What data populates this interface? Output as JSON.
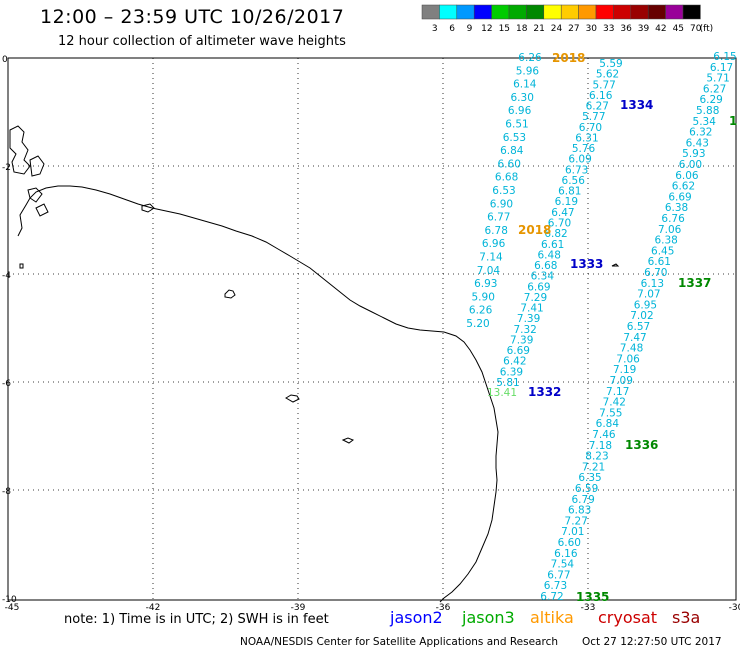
{
  "header": {
    "title": "12:00 – 23:59 UTC 10/26/2017",
    "subtitle": "12 hour collection of altimeter wave heights"
  },
  "legend": {
    "unit": "(ft)",
    "bins": [
      {
        "label": "3",
        "color": "#808080"
      },
      {
        "label": "6",
        "color": "#00ffff"
      },
      {
        "label": "9",
        "color": "#0099ff"
      },
      {
        "label": "12",
        "color": "#0000ff"
      },
      {
        "label": "15",
        "color": "#00cc00"
      },
      {
        "label": "18",
        "color": "#00aa00"
      },
      {
        "label": "21",
        "color": "#008800"
      },
      {
        "label": "24",
        "color": "#ffff00"
      },
      {
        "label": "27",
        "color": "#ffcc00"
      },
      {
        "label": "30",
        "color": "#ff9900"
      },
      {
        "label": "33",
        "color": "#ff0000"
      },
      {
        "label": "36",
        "color": "#cc0000"
      },
      {
        "label": "39",
        "color": "#990000"
      },
      {
        "label": "42",
        "color": "#660000"
      },
      {
        "label": "45",
        "color": "#990099"
      },
      {
        "label": "70",
        "color": "#000000"
      }
    ]
  },
  "axes": {
    "lon_ticks": [
      "-45",
      "-42",
      "-39",
      "-36",
      "-33",
      "-30"
    ],
    "lat_ticks": [
      "0",
      "-2",
      "-4",
      "-6",
      "-8",
      "-10"
    ]
  },
  "tracks": {
    "pass_labels": [
      {
        "text": "2018",
        "color": "#e69500"
      },
      {
        "text": "1334",
        "color": "#0000c8"
      },
      {
        "text": "1",
        "color": "#008800"
      },
      {
        "text": "2018",
        "color": "#e69500"
      },
      {
        "text": "1333",
        "color": "#0000c8"
      },
      {
        "text": "1337",
        "color": "#008800"
      },
      {
        "text": "1332",
        "color": "#0000c8"
      },
      {
        "text": "1336",
        "color": "#008800"
      },
      {
        "text": "1335",
        "color": "#008800"
      }
    ],
    "track_a": {
      "color": "#00b4d8",
      "values": [
        "6.26",
        "5.96",
        "6.14",
        "6.30",
        "6.96",
        "6.51",
        "6.53",
        "6.84",
        "6.60",
        "6.68",
        "6.53",
        "6.90",
        "6.77",
        "6.78",
        "6.96",
        "7.14",
        "7.04",
        "6.93",
        "5.90",
        "6.26",
        "5.20"
      ]
    },
    "track_b": {
      "color": "#00b4d8",
      "values": [
        "5.59",
        "5.62",
        "5.77",
        "6.16",
        "6.27",
        "5.77",
        "6.70",
        "6.31",
        "5.76",
        "6.09",
        "6.73",
        "6.56",
        "6.81",
        "6.19",
        "6.47",
        "6.70",
        "6.82",
        "6.61",
        "6.48",
        "6.68",
        "6.34",
        "6.69",
        "7.29",
        "7.41",
        "7.39",
        "7.32",
        "7.39",
        "6.69",
        "6.42",
        "6.39",
        "5.81"
      ]
    },
    "track_b_tail": {
      "text": "13.41",
      "color": "#66dd66"
    },
    "track_c": {
      "color": "#00b4d8",
      "values": [
        "6.15",
        "6.17",
        "5.71",
        "6.27",
        "6.29",
        "5.88",
        "5.34",
        "6.32",
        "6.43",
        "5.93",
        "6.00",
        "6.06",
        "6.62",
        "6.69",
        "6.38",
        "6.76",
        "7.06",
        "6.38",
        "6.45",
        "6.61",
        "6.70",
        "6.13",
        "7.07",
        "6.95",
        "7.02",
        "6.57",
        "7.47",
        "7.48",
        "7.06",
        "7.19",
        "7.09",
        "7.17",
        "7.42",
        "7.55",
        "6.84",
        "7.46",
        "7.18",
        "8.23",
        "7.21",
        "6.35",
        "6.59",
        "6.79",
        "6.83",
        "7.27",
        "7.01",
        "6.60",
        "6.16",
        "7.54",
        "6.77",
        "6.73",
        "6.72"
      ]
    }
  },
  "footer": {
    "note": "note: 1) Time is in UTC; 2) SWH is in feet",
    "satellites": [
      {
        "name": "jason2",
        "color": "#0000ff"
      },
      {
        "name": "jason3",
        "color": "#00aa00"
      },
      {
        "name": "altika",
        "color": "#ff9900"
      },
      {
        "name": "cryosat",
        "color": "#cc0000"
      },
      {
        "name": "s3a",
        "color": "#990000"
      }
    ],
    "credit": "NOAA/NESDIS Center for Satellite Applications and Research",
    "timestamp": "Oct 27 12:27:50 UTC 2017"
  }
}
